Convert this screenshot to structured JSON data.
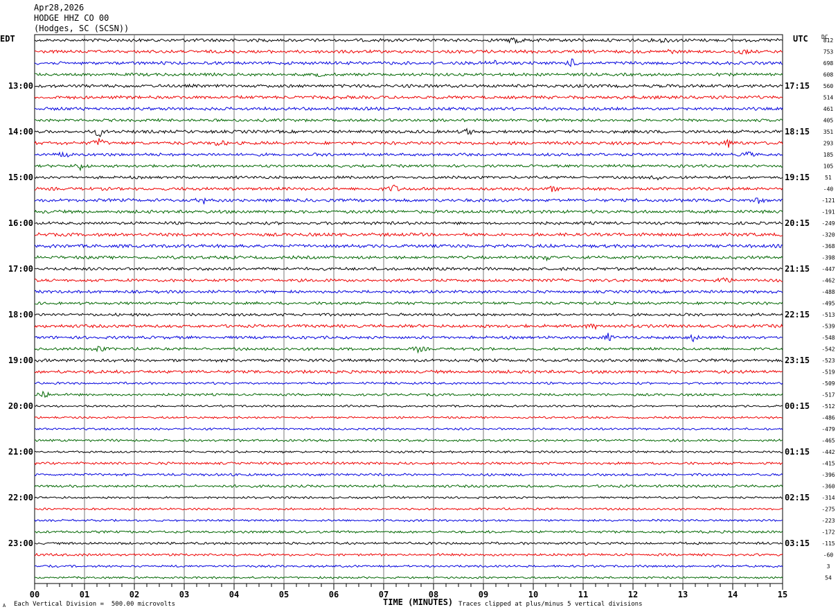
{
  "header": {
    "date": "Apr28,2026",
    "station": "HODGE HHZ CO 00",
    "location": "(Hodges, SC (SCSN))"
  },
  "left_tz": "EDT",
  "right_tz": "UTC",
  "dc_label": "DC",
  "footer": {
    "left_mark": "A",
    "scale_note": "Each Vertical Division =  500.00 microvolts",
    "clip_note": "Traces clipped at plus/minus 5 vertical divisions"
  },
  "chart_data": {
    "type": "line",
    "xlabel": "TIME (MINUTES)",
    "x_ticks": [
      "00",
      "01",
      "02",
      "03",
      "04",
      "05",
      "06",
      "07",
      "08",
      "09",
      "10",
      "11",
      "12",
      "13",
      "14",
      "15"
    ],
    "xlim": [
      0,
      15
    ],
    "trace_colors": [
      "#000000",
      "#ee0000",
      "#0000dd",
      "#006600"
    ],
    "left_hour_labels": [
      "13:00",
      "14:00",
      "15:00",
      "16:00",
      "17:00",
      "18:00",
      "19:00",
      "20:00",
      "21:00",
      "22:00",
      "23:00"
    ],
    "right_hour_labels": [
      "17:15",
      "18:15",
      "19:15",
      "20:15",
      "21:15",
      "22:15",
      "23:15",
      "00:15",
      "01:15",
      "02:15",
      "03:15"
    ],
    "first_hour_label_row": 4,
    "rows_per_hour": 4,
    "dc_offsets": [
      812,
      753,
      698,
      608,
      560,
      514,
      461,
      405,
      351,
      293,
      185,
      105,
      51,
      -40,
      -121,
      -191,
      -249,
      -320,
      -368,
      -398,
      -447,
      -462,
      -488,
      -495,
      -513,
      -539,
      -548,
      -542,
      -523,
      -519,
      -509,
      -517,
      -512,
      -486,
      -479,
      -465,
      -442,
      -415,
      -396,
      -360,
      -314,
      -275,
      -223,
      -172,
      -115,
      -60,
      3,
      54
    ],
    "events": [
      {
        "row": 0,
        "minute": 9.65,
        "amp": 9
      },
      {
        "row": 0,
        "minute": 12.6,
        "amp": 4
      },
      {
        "row": 1,
        "minute": 14.2,
        "amp": 5
      },
      {
        "row": 1,
        "minute": 12.7,
        "amp": 3
      },
      {
        "row": 2,
        "minute": 10.8,
        "amp": 6
      },
      {
        "row": 2,
        "minute": 9.2,
        "amp": 4
      },
      {
        "row": 3,
        "minute": 5.7,
        "amp": 3
      },
      {
        "row": 8,
        "minute": 1.3,
        "amp": 7
      },
      {
        "row": 8,
        "minute": 8.7,
        "amp": 5
      },
      {
        "row": 9,
        "minute": 1.3,
        "amp": 8
      },
      {
        "row": 9,
        "minute": 3.7,
        "amp": 5
      },
      {
        "row": 9,
        "minute": 13.9,
        "amp": 6
      },
      {
        "row": 10,
        "minute": 0.6,
        "amp": 5
      },
      {
        "row": 10,
        "minute": 14.3,
        "amp": 5
      },
      {
        "row": 11,
        "minute": 0.9,
        "amp": 6
      },
      {
        "row": 12,
        "minute": 12.5,
        "amp": 5
      },
      {
        "row": 13,
        "minute": 7.2,
        "amp": 7
      },
      {
        "row": 13,
        "minute": 10.4,
        "amp": 4
      },
      {
        "row": 14,
        "minute": 3.4,
        "amp": 4
      },
      {
        "row": 14,
        "minute": 14.5,
        "amp": 4
      },
      {
        "row": 19,
        "minute": 10.3,
        "amp": 4
      },
      {
        "row": 21,
        "minute": 13.8,
        "amp": 5
      },
      {
        "row": 25,
        "minute": 11.2,
        "amp": 4
      },
      {
        "row": 26,
        "minute": 11.5,
        "amp": 5
      },
      {
        "row": 26,
        "minute": 13.2,
        "amp": 5
      },
      {
        "row": 27,
        "minute": 1.3,
        "amp": 5
      },
      {
        "row": 27,
        "minute": 7.7,
        "amp": 5
      },
      {
        "row": 31,
        "minute": 0.2,
        "amp": 7
      }
    ]
  }
}
